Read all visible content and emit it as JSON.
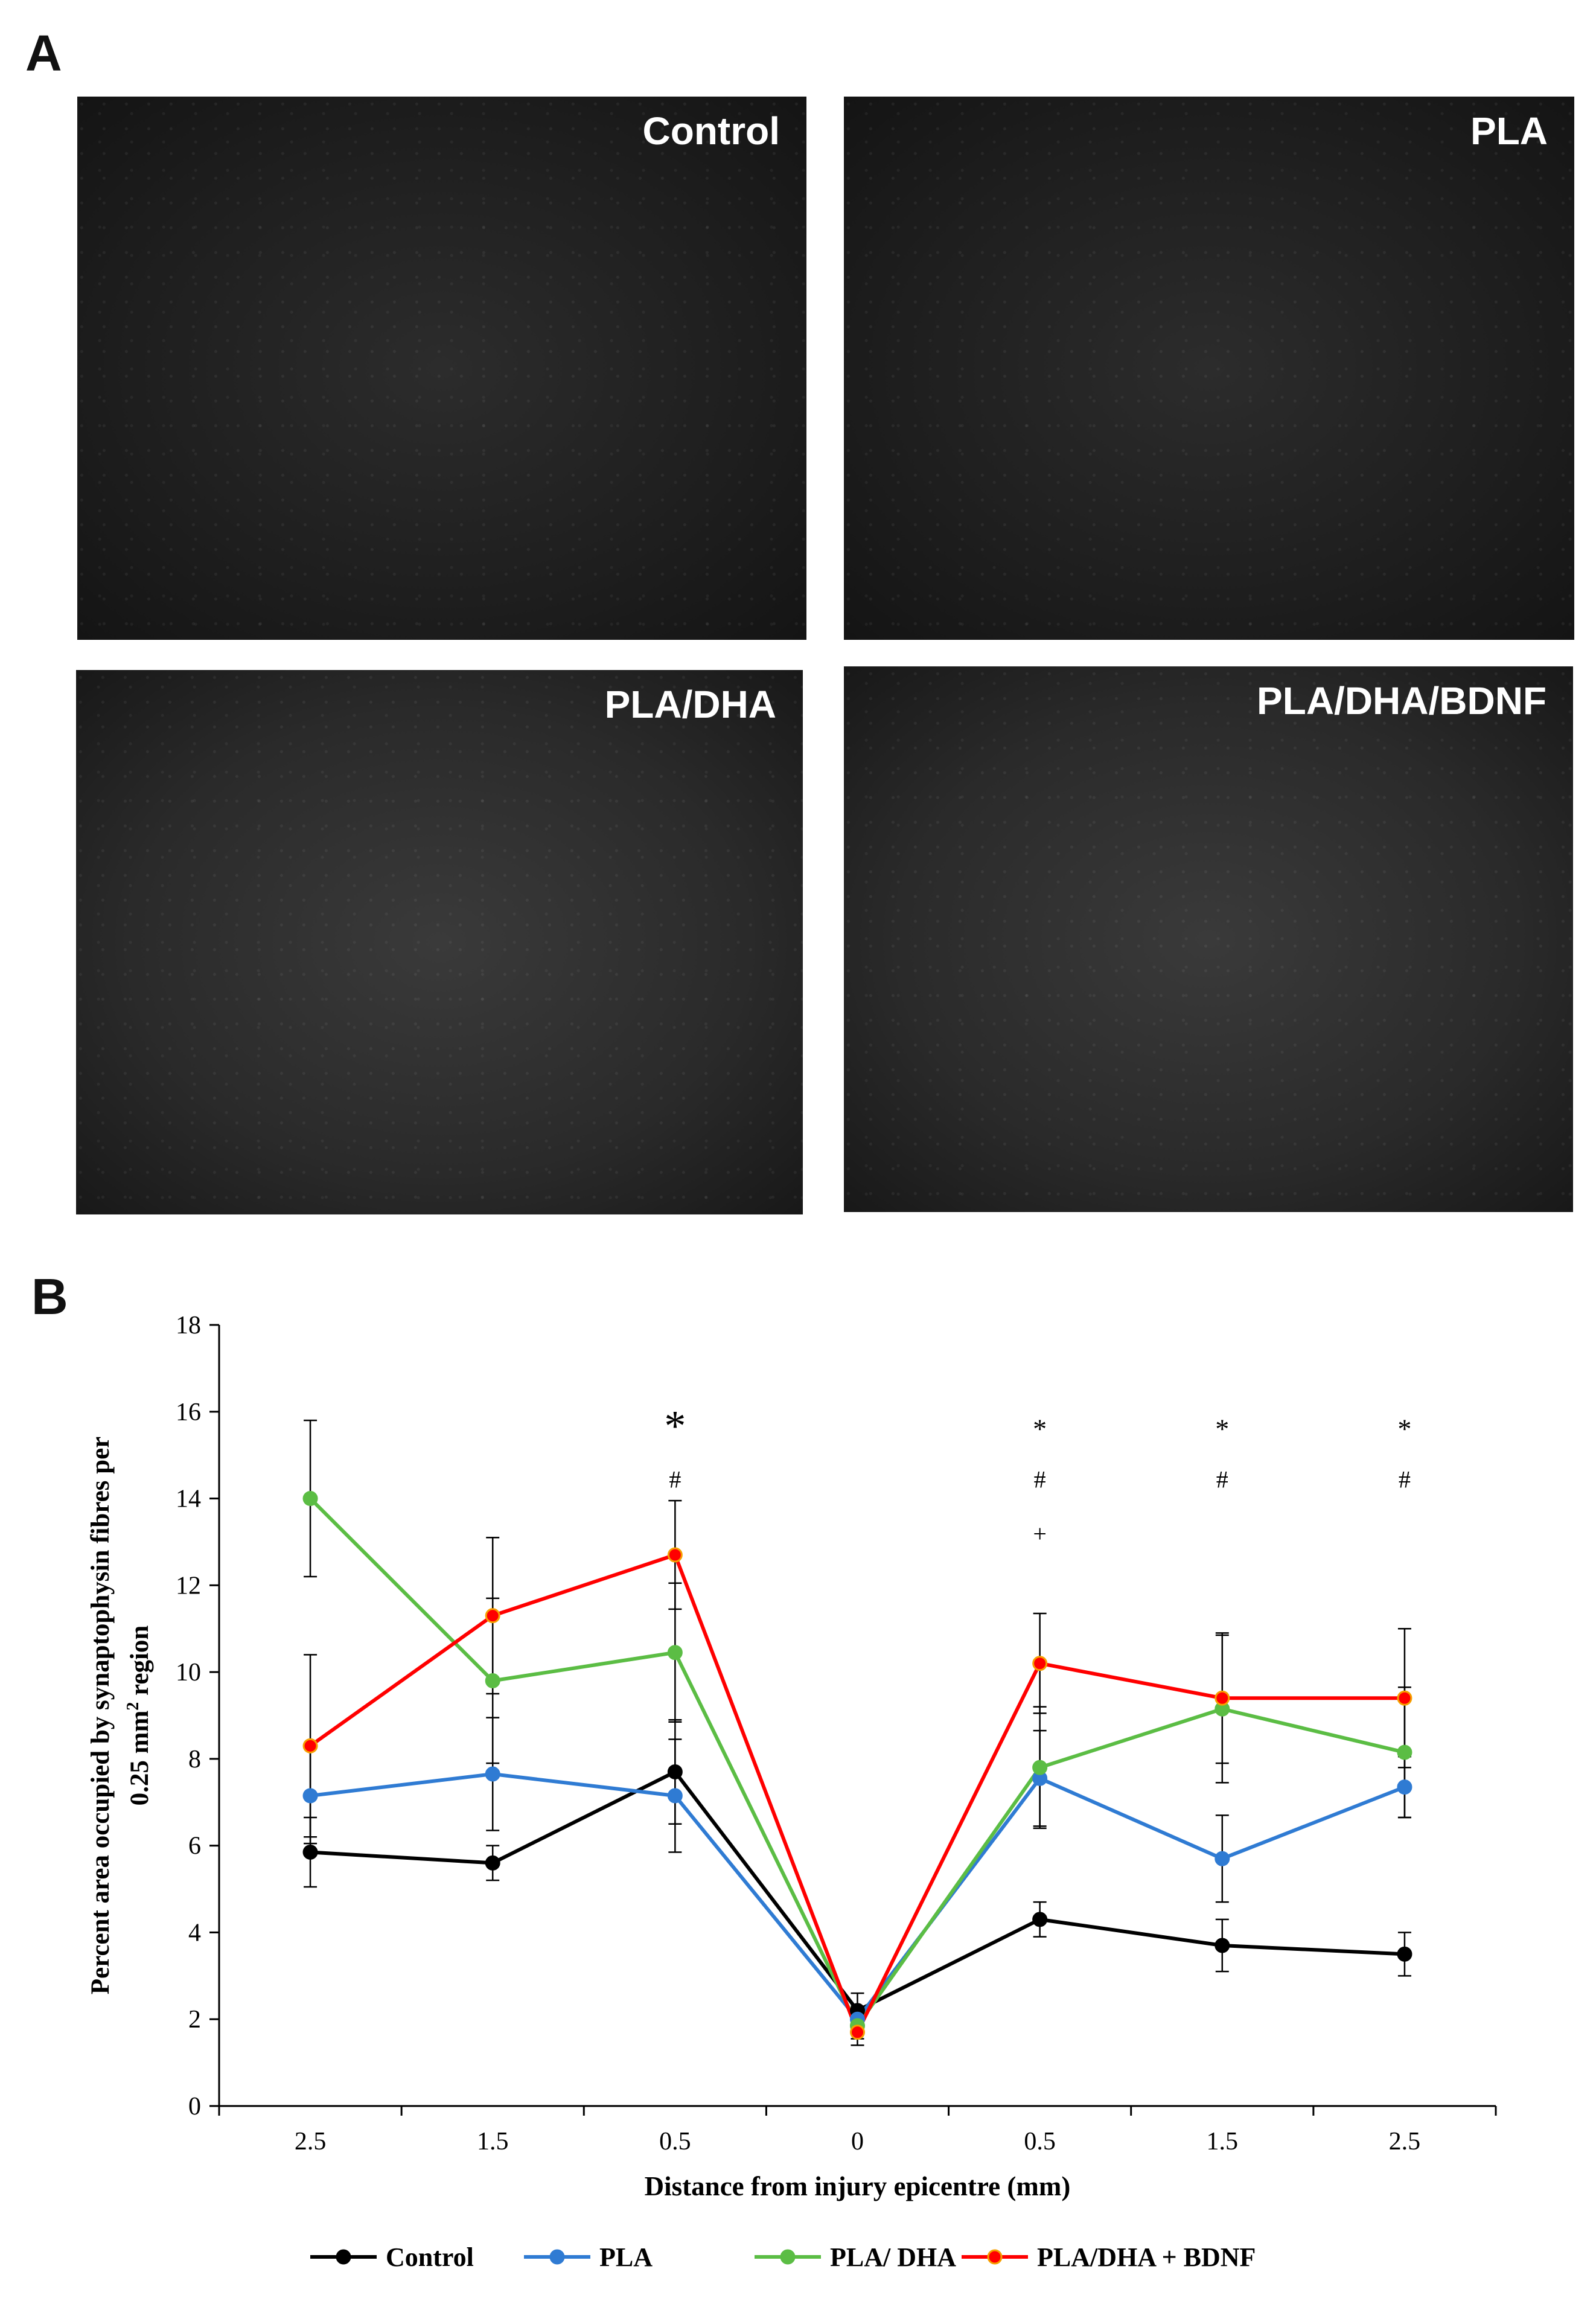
{
  "panels": {
    "a_letter": "A",
    "b_letter": "B",
    "micrographs": [
      {
        "label": "Control"
      },
      {
        "label": "PLA"
      },
      {
        "label": "PLA/DHA"
      },
      {
        "label": "PLA/DHA/BDNF"
      }
    ]
  },
  "chart_data": {
    "type": "line",
    "title": "",
    "xlabel": "Distance from injury  epicentre (mm)",
    "ylabel_line1": "Percent area occupied by synaptophysin fibres per",
    "ylabel_line2": "0.25 mm",
    "ylabel_sup": "2",
    "ylabel_line2_end": " region",
    "ylim": [
      0,
      18
    ],
    "yticks": [
      0,
      2,
      4,
      6,
      8,
      10,
      12,
      14,
      16,
      18
    ],
    "categories": [
      "2.5",
      "1.5",
      "0.5",
      "0",
      "0.5",
      "1.5",
      "2.5"
    ],
    "grid": false,
    "legend_position": "bottom",
    "series": [
      {
        "name": "Control",
        "color": "#000000",
        "values": [
          5.85,
          5.6,
          7.7,
          2.2,
          4.3,
          3.7,
          3.5
        ],
        "errors": [
          0.8,
          0.4,
          1.2,
          0.4,
          0.4,
          0.6,
          0.5
        ]
      },
      {
        "name": "PLA",
        "color": "#2f7bd3",
        "values": [
          7.15,
          7.65,
          7.15,
          2.0,
          7.55,
          5.7,
          7.35
        ],
        "errors": [
          1.1,
          1.3,
          1.3,
          0.3,
          1.1,
          1.0,
          0.7
        ]
      },
      {
        "name": "PLA/ DHA",
        "color": "#5bbd44",
        "values": [
          14.0,
          9.8,
          10.45,
          1.85,
          7.8,
          9.15,
          8.15
        ],
        "errors": [
          1.8,
          1.9,
          1.6,
          0.3,
          1.4,
          1.7,
          1.5
        ]
      },
      {
        "name": "PLA/DHA + BDNF",
        "color": "#ff0000",
        "values": [
          8.3,
          11.3,
          12.7,
          1.7,
          10.2,
          9.4,
          9.4
        ],
        "errors": [
          2.1,
          1.8,
          1.25,
          0.3,
          1.15,
          1.5,
          1.6
        ]
      }
    ],
    "annotations": [
      {
        "category_index": 2,
        "lines": [
          "*",
          "#"
        ],
        "big_star": true
      },
      {
        "category_index": 4,
        "lines": [
          "*",
          "#",
          "+"
        ],
        "big_star": false
      },
      {
        "category_index": 5,
        "lines": [
          "*",
          "#"
        ],
        "big_star": false
      },
      {
        "category_index": 6,
        "lines": [
          "*",
          "#"
        ],
        "big_star": false
      }
    ]
  }
}
